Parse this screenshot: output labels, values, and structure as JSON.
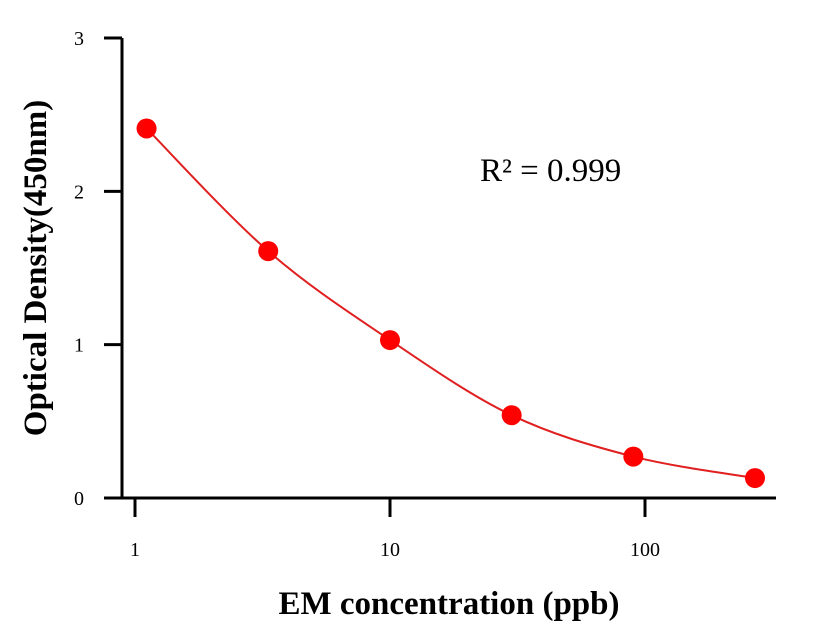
{
  "chart_data": {
    "type": "scatter",
    "xlabel": "EM concentration (ppb)",
    "ylabel": "Optical Density(450nm)",
    "x_scale": "log",
    "xlim": [
      0.85,
      330
    ],
    "ylim": [
      0,
      3
    ],
    "x_ticks": [
      1,
      10,
      100
    ],
    "x_tick_labels": [
      "1",
      "10",
      "100"
    ],
    "y_ticks": [
      0,
      1,
      2,
      3
    ],
    "y_tick_labels": [
      "0",
      "1",
      "2",
      "3"
    ],
    "grid": false,
    "series": [
      {
        "color": "#ff0000",
        "line_color": "#e02020",
        "x": [
          1.11,
          3.33,
          10,
          30,
          90,
          270
        ],
        "y": [
          2.41,
          1.61,
          1.03,
          0.54,
          0.27,
          0.13
        ],
        "fit": "curve"
      }
    ],
    "annotation": "R² = 0.999"
  }
}
